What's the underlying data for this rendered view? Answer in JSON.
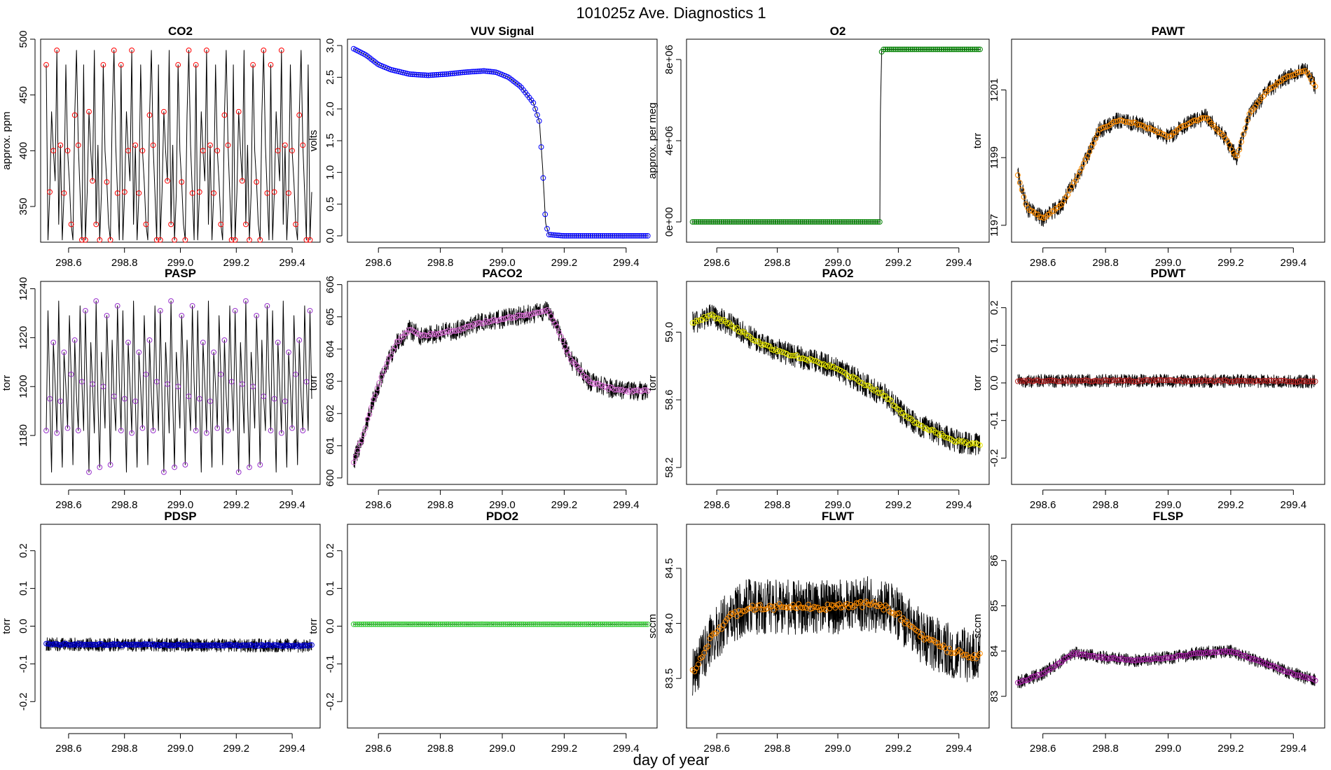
{
  "figure": {
    "title": "101025z   Ave. Diagnostics 1",
    "xlabel": "day of year"
  },
  "chart_data": [
    {
      "type": "line",
      "title": "CO2",
      "ylabel": "approx. ppm",
      "xlabel": "",
      "xlim": [
        298.5,
        299.5
      ],
      "ylim": [
        318,
        500
      ],
      "xticks": [
        298.6,
        298.8,
        299.0,
        299.2,
        299.4
      ],
      "xtick_labels": [
        "298.6",
        "298.8",
        "299.0",
        "299.2",
        "299.4"
      ],
      "yticks": [
        350,
        400,
        450,
        500
      ],
      "ytick_labels": [
        "350",
        "400",
        "450",
        "500"
      ],
      "marker_color": "#ff0000",
      "line_color": "#000000",
      "pattern": "cycle",
      "x_range": [
        298.52,
        299.47
      ],
      "cycle_values": [
        477,
        320,
        363,
        435,
        400,
        373,
        490,
        334,
        405,
        320,
        362,
        477,
        400,
        372,
        334,
        320,
        432,
        490,
        405,
        362,
        320
      ],
      "noise": 0
    },
    {
      "type": "line",
      "title": "VUV Signal",
      "ylabel": "volts",
      "xlabel": "",
      "xlim": [
        298.5,
        299.5
      ],
      "ylim": [
        -0.1,
        3.1
      ],
      "xticks": [
        298.6,
        298.8,
        299.0,
        299.2,
        299.4
      ],
      "xtick_labels": [
        "298.6",
        "298.8",
        "299.0",
        "299.2",
        "299.4"
      ],
      "yticks": [
        0.0,
        0.5,
        1.0,
        1.5,
        2.0,
        2.5,
        3.0
      ],
      "ytick_labels": [
        "0.0",
        "0.5",
        "1.0",
        "1.5",
        "2.0",
        "2.5",
        "3.0"
      ],
      "marker_color": "#0000ff",
      "line_color": "#000000",
      "pattern": "curve",
      "x_range": [
        298.52,
        299.47
      ],
      "points": [
        [
          298.52,
          2.95
        ],
        [
          298.56,
          2.85
        ],
        [
          298.6,
          2.7
        ],
        [
          298.64,
          2.62
        ],
        [
          298.7,
          2.55
        ],
        [
          298.76,
          2.53
        ],
        [
          298.82,
          2.55
        ],
        [
          298.88,
          2.58
        ],
        [
          298.94,
          2.6
        ],
        [
          298.98,
          2.58
        ],
        [
          299.02,
          2.5
        ],
        [
          299.06,
          2.35
        ],
        [
          299.1,
          2.1
        ],
        [
          299.12,
          1.8
        ],
        [
          299.13,
          1.1
        ],
        [
          299.14,
          0.2
        ],
        [
          299.15,
          0.02
        ],
        [
          299.2,
          0.0
        ],
        [
          299.47,
          0.0
        ]
      ],
      "noise": 0
    },
    {
      "type": "line",
      "title": "O2",
      "ylabel": "approx. per meg",
      "xlabel": "",
      "xlim": [
        298.5,
        299.5
      ],
      "ylim": [
        -1000000,
        9000000
      ],
      "xticks": [
        298.6,
        298.8,
        299.0,
        299.2,
        299.4
      ],
      "xtick_labels": [
        "298.6",
        "298.8",
        "299.0",
        "299.2",
        "299.4"
      ],
      "yticks": [
        0,
        4000000,
        8000000
      ],
      "ytick_labels": [
        "0e+00",
        "4e+06",
        "8e+06"
      ],
      "marker_color": "#008000",
      "line_color": "#000000",
      "pattern": "curve",
      "x_range": [
        298.52,
        299.47
      ],
      "points": [
        [
          298.52,
          0
        ],
        [
          299.139,
          0
        ],
        [
          299.14,
          4900000
        ],
        [
          299.145,
          8500000
        ],
        [
          299.47,
          8500000
        ]
      ],
      "noise": 0
    },
    {
      "type": "line",
      "title": "PAWT",
      "ylabel": "torr",
      "xlabel": "",
      "xlim": [
        298.5,
        299.5
      ],
      "ylim": [
        1196.5,
        1202.5
      ],
      "xticks": [
        298.6,
        298.8,
        299.0,
        299.2,
        299.4
      ],
      "xtick_labels": [
        "298.6",
        "298.8",
        "299.0",
        "299.2",
        "299.4"
      ],
      "yticks": [
        1197,
        1199,
        1201
      ],
      "ytick_labels": [
        "1197",
        "1199",
        "1201"
      ],
      "marker_color": "#ff8c00",
      "line_color": "#000000",
      "pattern": "curve",
      "x_range": [
        298.52,
        299.47
      ],
      "points": [
        [
          298.52,
          1198.5
        ],
        [
          298.55,
          1197.5
        ],
        [
          298.6,
          1197.2
        ],
        [
          298.66,
          1197.6
        ],
        [
          298.72,
          1198.6
        ],
        [
          298.78,
          1199.8
        ],
        [
          298.84,
          1200.1
        ],
        [
          298.9,
          1200.0
        ],
        [
          298.96,
          1199.8
        ],
        [
          299.0,
          1199.6
        ],
        [
          299.06,
          1200.0
        ],
        [
          299.12,
          1200.2
        ],
        [
          299.18,
          1199.6
        ],
        [
          299.22,
          1199.0
        ],
        [
          299.26,
          1200.3
        ],
        [
          299.32,
          1201.0
        ],
        [
          299.38,
          1201.4
        ],
        [
          299.44,
          1201.6
        ],
        [
          299.47,
          1201.1
        ]
      ],
      "noise": 0.25
    },
    {
      "type": "line",
      "title": "PASP",
      "ylabel": "torr",
      "xlabel": "",
      "xlim": [
        298.5,
        299.5
      ],
      "ylim": [
        1160,
        1243
      ],
      "xticks": [
        298.6,
        298.8,
        299.0,
        299.2,
        299.4
      ],
      "xtick_labels": [
        "298.6",
        "298.8",
        "299.0",
        "299.2",
        "299.4"
      ],
      "yticks": [
        1180,
        1200,
        1220,
        1240
      ],
      "ytick_labels": [
        "1180",
        "1200",
        "1220",
        "1240"
      ],
      "marker_color": "#9932cc",
      "line_color": "#000000",
      "pattern": "cycle",
      "x_range": [
        298.52,
        299.47
      ],
      "cycle_values": [
        1182,
        1231,
        1195,
        1165,
        1218,
        1201,
        1181,
        1235,
        1194,
        1167,
        1214,
        1200,
        1183,
        1229,
        1205,
        1168,
        1219,
        1196,
        1182,
        1233,
        1202
      ],
      "noise": 0
    },
    {
      "type": "line",
      "title": "PACO2",
      "ylabel": "torr",
      "xlabel": "",
      "xlim": [
        298.5,
        299.5
      ],
      "ylim": [
        599.8,
        606.1
      ],
      "xticks": [
        298.6,
        298.8,
        299.0,
        299.2,
        299.4
      ],
      "xtick_labels": [
        "298.6",
        "298.8",
        "299.0",
        "299.2",
        "299.4"
      ],
      "yticks": [
        600,
        601,
        602,
        603,
        604,
        605,
        606
      ],
      "ytick_labels": [
        "600",
        "601",
        "602",
        "603",
        "604",
        "605",
        "606"
      ],
      "marker_color": "#da70d6",
      "line_color": "#000000",
      "pattern": "curve",
      "x_range": [
        298.52,
        299.47
      ],
      "points": [
        [
          298.52,
          600.5
        ],
        [
          298.55,
          601.3
        ],
        [
          298.58,
          602.3
        ],
        [
          298.62,
          603.4
        ],
        [
          298.66,
          604.2
        ],
        [
          298.7,
          604.6
        ],
        [
          298.74,
          604.4
        ],
        [
          298.8,
          604.5
        ],
        [
          298.86,
          604.6
        ],
        [
          298.92,
          604.8
        ],
        [
          298.98,
          604.9
        ],
        [
          299.04,
          605.0
        ],
        [
          299.1,
          605.1
        ],
        [
          299.15,
          605.2
        ],
        [
          299.18,
          604.6
        ],
        [
          299.22,
          603.7
        ],
        [
          299.28,
          603.0
        ],
        [
          299.34,
          602.8
        ],
        [
          299.4,
          602.7
        ],
        [
          299.47,
          602.7
        ]
      ],
      "noise": 0.3
    },
    {
      "type": "line",
      "title": "PAO2",
      "ylabel": "torr",
      "xlabel": "",
      "xlim": [
        298.5,
        299.5
      ],
      "ylim": [
        58.1,
        59.3
      ],
      "xticks": [
        298.6,
        298.8,
        299.0,
        299.2,
        299.4
      ],
      "xtick_labels": [
        "298.6",
        "298.8",
        "299.0",
        "299.2",
        "299.4"
      ],
      "yticks": [
        58.2,
        58.6,
        59.0
      ],
      "ytick_labels": [
        "58.2",
        "58.6",
        "59.0"
      ],
      "marker_color": "#e8e800",
      "line_color": "#000000",
      "pattern": "curve",
      "x_range": [
        298.52,
        299.47
      ],
      "points": [
        [
          298.52,
          59.05
        ],
        [
          298.58,
          59.1
        ],
        [
          298.64,
          59.05
        ],
        [
          298.7,
          58.98
        ],
        [
          298.76,
          58.92
        ],
        [
          298.82,
          58.88
        ],
        [
          298.88,
          58.85
        ],
        [
          298.94,
          58.82
        ],
        [
          299.0,
          58.78
        ],
        [
          299.06,
          58.72
        ],
        [
          299.12,
          58.66
        ],
        [
          299.16,
          58.62
        ],
        [
          299.2,
          58.54
        ],
        [
          299.26,
          58.46
        ],
        [
          299.32,
          58.41
        ],
        [
          299.38,
          58.36
        ],
        [
          299.44,
          58.34
        ],
        [
          299.47,
          58.34
        ]
      ],
      "noise": 0.07
    },
    {
      "type": "line",
      "title": "PDWT",
      "ylabel": "torr",
      "xlabel": "",
      "xlim": [
        298.5,
        299.5
      ],
      "ylim": [
        -0.27,
        0.27
      ],
      "xticks": [
        298.6,
        298.8,
        299.0,
        299.2,
        299.4
      ],
      "xtick_labels": [
        "298.6",
        "298.8",
        "299.0",
        "299.2",
        "299.4"
      ],
      "yticks": [
        -0.2,
        -0.1,
        0.0,
        0.1,
        0.2
      ],
      "ytick_labels": [
        "-0.2",
        "-0.1",
        "0.0",
        "0.1",
        "0.2"
      ],
      "marker_color": "#b22222",
      "line_color": "#000000",
      "pattern": "curve",
      "x_range": [
        298.52,
        299.47
      ],
      "points": [
        [
          298.52,
          0.005
        ],
        [
          299.0,
          0.006
        ],
        [
          299.47,
          0.004
        ]
      ],
      "noise": 0.018
    },
    {
      "type": "line",
      "title": "PDSP",
      "ylabel": "torr",
      "xlabel": "",
      "xlim": [
        298.5,
        299.5
      ],
      "ylim": [
        -0.27,
        0.27
      ],
      "xticks": [
        298.6,
        298.8,
        299.0,
        299.2,
        299.4
      ],
      "xtick_labels": [
        "298.6",
        "298.8",
        "299.0",
        "299.2",
        "299.4"
      ],
      "yticks": [
        -0.2,
        -0.1,
        0.0,
        0.1,
        0.2
      ],
      "ytick_labels": [
        "-0.2",
        "-0.1",
        "0.0",
        "0.1",
        "0.2"
      ],
      "marker_color": "#0000cd",
      "line_color": "#000000",
      "pattern": "curve",
      "x_range": [
        298.52,
        299.47
      ],
      "points": [
        [
          298.52,
          -0.048
        ],
        [
          299.0,
          -0.05
        ],
        [
          299.47,
          -0.052
        ]
      ],
      "noise": 0.018
    },
    {
      "type": "line",
      "title": "PDO2",
      "ylabel": "torr",
      "xlabel": "",
      "xlim": [
        298.5,
        299.5
      ],
      "ylim": [
        -0.27,
        0.27
      ],
      "xticks": [
        298.6,
        298.8,
        299.0,
        299.2,
        299.4
      ],
      "xtick_labels": [
        "298.6",
        "298.8",
        "299.0",
        "299.2",
        "299.4"
      ],
      "yticks": [
        -0.2,
        -0.1,
        0.0,
        0.1,
        0.2
      ],
      "ytick_labels": [
        "-0.2",
        "-0.1",
        "0.0",
        "0.1",
        "0.2"
      ],
      "marker_color": "#32cd32",
      "line_color": "#000000",
      "pattern": "curve",
      "x_range": [
        298.52,
        299.47
      ],
      "points": [
        [
          298.52,
          0.005
        ],
        [
          299.47,
          0.005
        ]
      ],
      "noise": 0.001
    },
    {
      "type": "line",
      "title": "FLWT",
      "ylabel": "sccm",
      "xlabel": "",
      "xlim": [
        298.5,
        299.5
      ],
      "ylim": [
        83.05,
        84.9
      ],
      "xticks": [
        298.6,
        298.8,
        299.0,
        299.2,
        299.4
      ],
      "xtick_labels": [
        "298.6",
        "298.8",
        "299.0",
        "299.2",
        "299.4"
      ],
      "yticks": [
        83.5,
        84.0,
        84.5
      ],
      "ytick_labels": [
        "83.5",
        "84.0",
        "84.5"
      ],
      "marker_color": "#ff8c00",
      "line_color": "#000000",
      "pattern": "curve",
      "x_range": [
        298.52,
        299.47
      ],
      "points": [
        [
          298.52,
          83.55
        ],
        [
          298.58,
          83.85
        ],
        [
          298.64,
          84.05
        ],
        [
          298.7,
          84.15
        ],
        [
          298.8,
          84.15
        ],
        [
          298.9,
          84.15
        ],
        [
          299.0,
          84.15
        ],
        [
          299.1,
          84.18
        ],
        [
          299.18,
          84.12
        ],
        [
          299.26,
          83.92
        ],
        [
          299.34,
          83.78
        ],
        [
          299.42,
          83.72
        ],
        [
          299.47,
          83.7
        ]
      ],
      "noise": 0.25
    },
    {
      "type": "line",
      "title": "FLSP",
      "ylabel": "sccm",
      "xlabel": "",
      "xlim": [
        298.5,
        299.5
      ],
      "ylim": [
        82.3,
        86.8
      ],
      "xticks": [
        298.6,
        298.8,
        299.0,
        299.2,
        299.4
      ],
      "xtick_labels": [
        "298.6",
        "298.8",
        "299.0",
        "299.2",
        "299.4"
      ],
      "yticks": [
        83,
        84,
        85,
        86
      ],
      "ytick_labels": [
        "83",
        "84",
        "85",
        "86"
      ],
      "marker_color": "#a020a0",
      "line_color": "#000000",
      "pattern": "curve",
      "x_range": [
        298.52,
        299.47
      ],
      "points": [
        [
          298.52,
          83.3
        ],
        [
          298.6,
          83.5
        ],
        [
          298.7,
          83.95
        ],
        [
          298.8,
          83.85
        ],
        [
          298.9,
          83.8
        ],
        [
          299.0,
          83.85
        ],
        [
          299.1,
          83.95
        ],
        [
          299.2,
          84.0
        ],
        [
          299.3,
          83.75
        ],
        [
          299.4,
          83.5
        ],
        [
          299.47,
          83.35
        ]
      ],
      "noise": 0.15
    }
  ]
}
